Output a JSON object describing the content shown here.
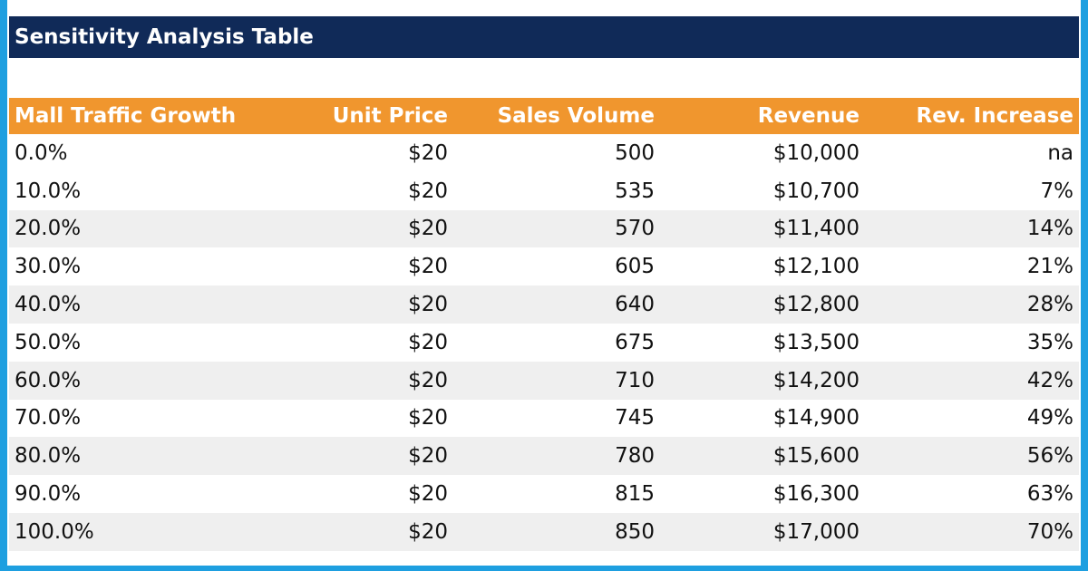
{
  "title": "Sensitivity Analysis Table",
  "table": {
    "header": [
      "Mall Traffic Growth",
      "Unit Price",
      "Sales Volume",
      "Revenue",
      "Rev. Increase"
    ],
    "rows": [
      [
        "0.0%",
        "$20",
        "500",
        "$10,000",
        "na"
      ],
      [
        "10.0%",
        "$20",
        "535",
        "$10,700",
        "7%"
      ],
      [
        "20.0%",
        "$20",
        "570",
        "$11,400",
        "14%"
      ],
      [
        "30.0%",
        "$20",
        "605",
        "$12,100",
        "21%"
      ],
      [
        "40.0%",
        "$20",
        "640",
        "$12,800",
        "28%"
      ],
      [
        "50.0%",
        "$20",
        "675",
        "$13,500",
        "35%"
      ],
      [
        "60.0%",
        "$20",
        "710",
        "$14,200",
        "42%"
      ],
      [
        "70.0%",
        "$20",
        "745",
        "$14,900",
        "49%"
      ],
      [
        "80.0%",
        "$20",
        "780",
        "$15,600",
        "56%"
      ],
      [
        "90.0%",
        "$20",
        "815",
        "$16,300",
        "63%"
      ],
      [
        "100.0%",
        "$20",
        "850",
        "$17,000",
        "70%"
      ]
    ]
  }
}
